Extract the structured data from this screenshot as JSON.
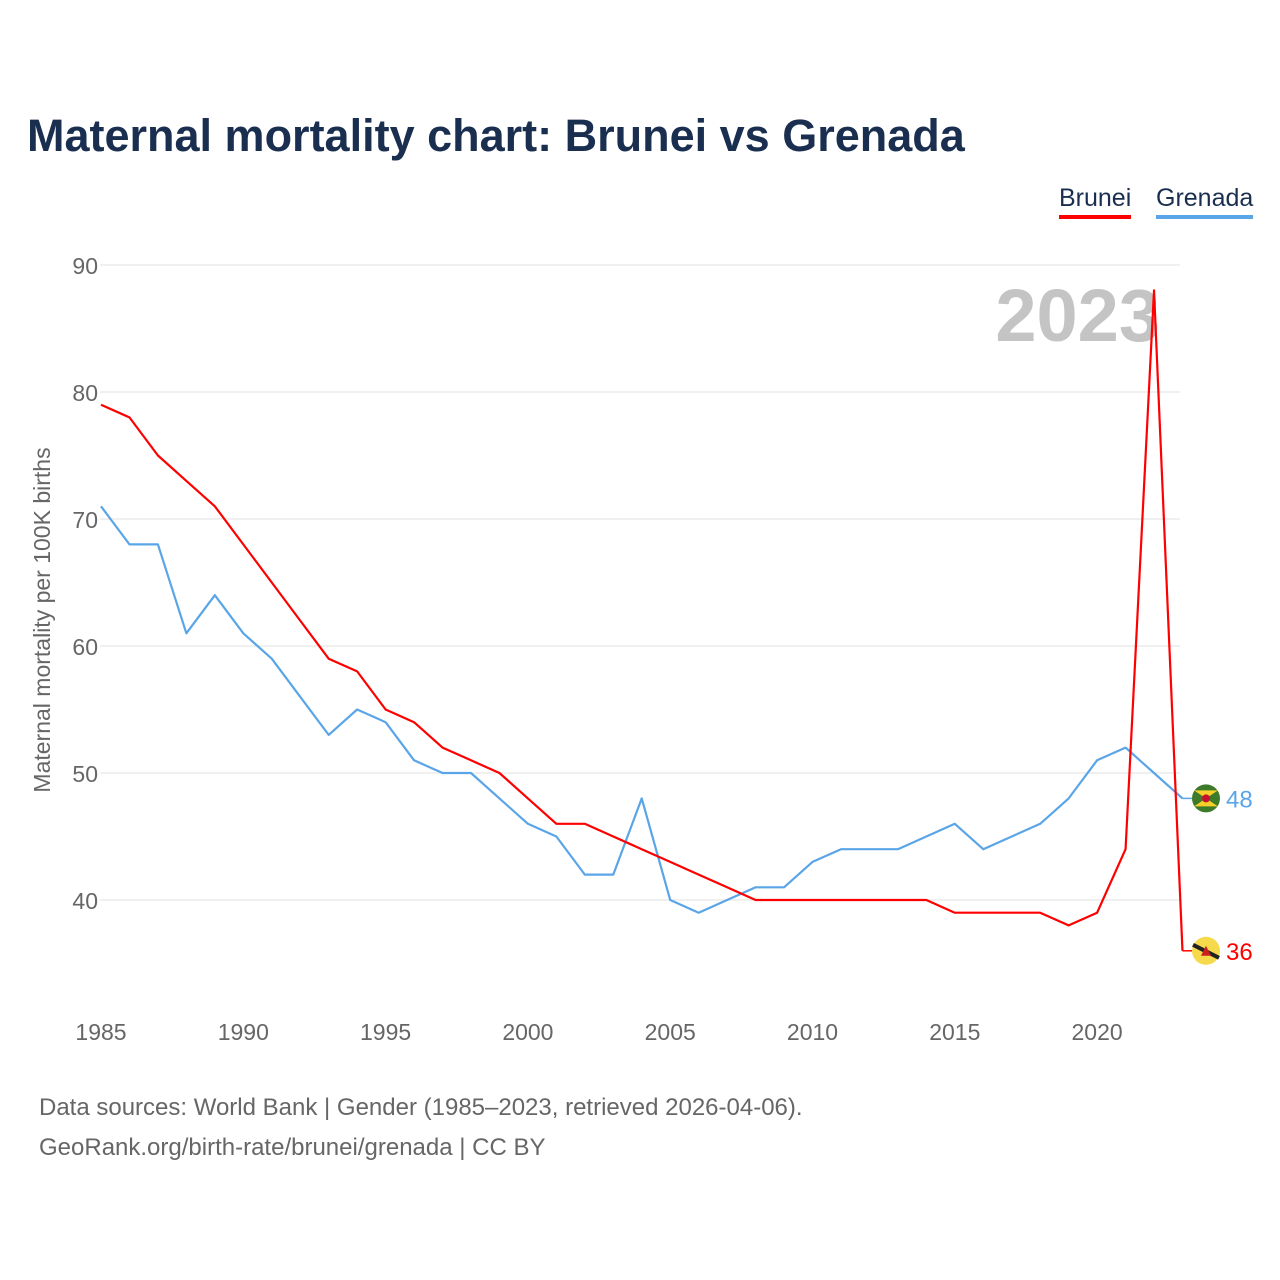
{
  "title": "Maternal mortality chart: Brunei vs Grenada",
  "footer": {
    "line1": "Data sources: World Bank | Gender (1985–2023, retrieved 2026-04-06).",
    "line2": "GeoRank.org/birth-rate/brunei/grenada | CC BY"
  },
  "chart_data": {
    "type": "line",
    "title": "Maternal mortality chart: Brunei vs Grenada",
    "ylabel": "Maternal mortality per 100K births",
    "xlabel": "",
    "year_watermark": "2023",
    "ylim": [
      32,
      92
    ],
    "yticks": [
      40,
      50,
      60,
      70,
      80,
      90
    ],
    "xticks": [
      1985,
      1990,
      1995,
      2000,
      2005,
      2010,
      2015,
      2020
    ],
    "legend": "top-right",
    "x": [
      1985,
      1986,
      1987,
      1988,
      1989,
      1990,
      1991,
      1992,
      1993,
      1994,
      1995,
      1996,
      1997,
      1998,
      1999,
      2000,
      2001,
      2002,
      2003,
      2004,
      2005,
      2006,
      2007,
      2008,
      2009,
      2010,
      2011,
      2012,
      2013,
      2014,
      2015,
      2016,
      2017,
      2018,
      2019,
      2020,
      2021,
      2022,
      2023
    ],
    "series": [
      {
        "name": "Brunei",
        "color": "#ff0000",
        "end_label": "36",
        "values": [
          79,
          78,
          75,
          73,
          71,
          68,
          65,
          62,
          59,
          58,
          55,
          54,
          52,
          51,
          50,
          48,
          46,
          46,
          45,
          44,
          43,
          42,
          41,
          40,
          40,
          40,
          40,
          40,
          40,
          40,
          39,
          39,
          39,
          39,
          38,
          39,
          44,
          88,
          36
        ]
      },
      {
        "name": "Grenada",
        "color": "#5aa5e8",
        "end_label": "48",
        "values": [
          71,
          68,
          68,
          61,
          64,
          61,
          59,
          56,
          53,
          55,
          54,
          51,
          50,
          50,
          48,
          46,
          45,
          42,
          42,
          48,
          40,
          39,
          40,
          41,
          41,
          43,
          44,
          44,
          44,
          45,
          46,
          44,
          45,
          46,
          48,
          51,
          52,
          50,
          48
        ]
      }
    ]
  }
}
